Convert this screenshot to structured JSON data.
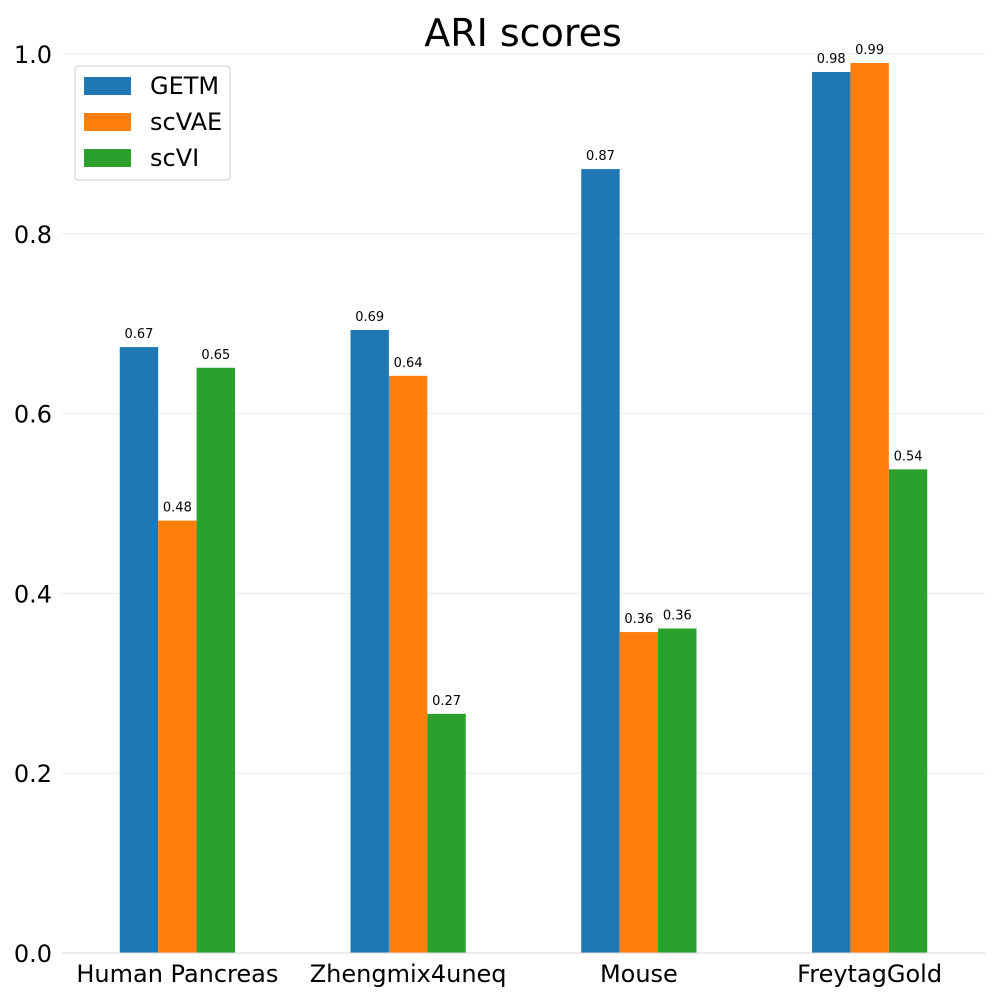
{
  "chart_data": {
    "type": "bar",
    "title": "ARI scores",
    "xlabel": "",
    "ylabel": "",
    "categories": [
      "Human Pancreas",
      "Zhengmix4uneq",
      "Mouse",
      "FreytagGold"
    ],
    "series": [
      {
        "name": "GETM",
        "color": "#1f77b4",
        "values": [
          0.674,
          0.693,
          0.872,
          0.98
        ],
        "labels": [
          "0.67",
          "0.69",
          "0.87",
          "0.98"
        ]
      },
      {
        "name": "scVAE",
        "color": "#ff7f0e",
        "values": [
          0.481,
          0.642,
          0.357,
          0.99
        ],
        "labels": [
          "0.48",
          "0.64",
          "0.36",
          "0.99"
        ]
      },
      {
        "name": "scVI",
        "color": "#2ca02c",
        "values": [
          0.651,
          0.266,
          0.361,
          0.538
        ],
        "labels": [
          "0.65",
          "0.27",
          "0.36",
          "0.54"
        ]
      }
    ],
    "ylim": [
      0,
      1.0
    ],
    "yticks": [
      "0.0",
      "0.2",
      "0.4",
      "0.6",
      "0.8",
      "1.0"
    ],
    "grid": true,
    "legend_position": "top-left"
  }
}
